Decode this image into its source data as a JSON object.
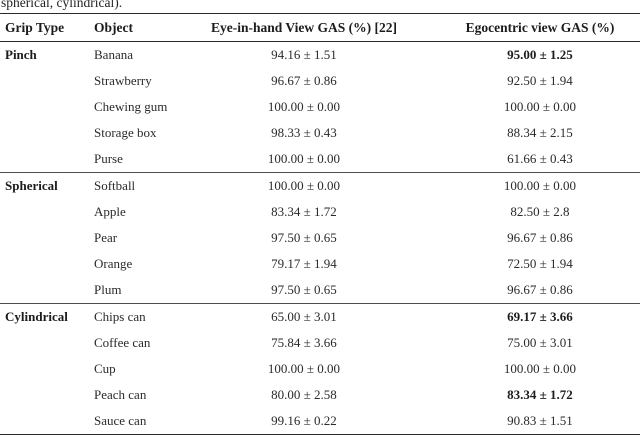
{
  "caption_fragment": "spherical, cylindrical).",
  "table": {
    "headers": [
      "Grip Type",
      "Object",
      "Eye-in-hand View GAS (%) [22]",
      "Egocentric view GAS (%)"
    ],
    "plus_minus_symbol": "±",
    "groups": [
      {
        "grip_type": "Pinch",
        "rows": [
          {
            "object": "Banana",
            "eye_in_hand": "94.16 ± 1.51",
            "egocentric": "95.00 ± 1.25",
            "egocentric_bold": true
          },
          {
            "object": "Strawberry",
            "eye_in_hand": "96.67 ± 0.86",
            "egocentric": "92.50 ± 1.94",
            "egocentric_bold": false
          },
          {
            "object": "Chewing gum",
            "eye_in_hand": "100.00 ± 0.00",
            "egocentric": "100.00 ± 0.00",
            "egocentric_bold": false
          },
          {
            "object": "Storage box",
            "eye_in_hand": "98.33 ± 0.43",
            "egocentric": "88.34 ± 2.15",
            "egocentric_bold": false
          },
          {
            "object": "Purse",
            "eye_in_hand": "100.00 ± 0.00",
            "egocentric": "61.66 ± 0.43",
            "egocentric_bold": false
          }
        ]
      },
      {
        "grip_type": "Spherical",
        "rows": [
          {
            "object": "Softball",
            "eye_in_hand": "100.00 ± 0.00",
            "egocentric": "100.00 ± 0.00",
            "egocentric_bold": false
          },
          {
            "object": "Apple",
            "eye_in_hand": "83.34 ± 1.72",
            "egocentric": "82.50 ± 2.8",
            "egocentric_bold": false
          },
          {
            "object": "Pear",
            "eye_in_hand": "97.50 ± 0.65",
            "egocentric": "96.67 ± 0.86",
            "egocentric_bold": false
          },
          {
            "object": "Orange",
            "eye_in_hand": "79.17 ± 1.94",
            "egocentric": "72.50 ± 1.94",
            "egocentric_bold": false
          },
          {
            "object": "Plum",
            "eye_in_hand": "97.50 ± 0.65",
            "egocentric": "96.67 ± 0.86",
            "egocentric_bold": false
          }
        ]
      },
      {
        "grip_type": "Cylindrical",
        "rows": [
          {
            "object": "Chips can",
            "eye_in_hand": "65.00 ± 3.01",
            "egocentric": "69.17 ± 3.66",
            "egocentric_bold": true
          },
          {
            "object": "Coffee can",
            "eye_in_hand": "75.84 ± 3.66",
            "egocentric": "75.00 ± 3.01",
            "egocentric_bold": false
          },
          {
            "object": "Cup",
            "eye_in_hand": "100.00 ± 0.00",
            "egocentric": "100.00 ± 0.00",
            "egocentric_bold": false
          },
          {
            "object": "Peach can",
            "eye_in_hand": "80.00 ± 2.58",
            "egocentric": "83.34 ± 1.72",
            "egocentric_bold": true
          },
          {
            "object": "Sauce can",
            "eye_in_hand": "99.16 ± 0.22",
            "egocentric": "90.83 ± 1.51",
            "egocentric_bold": false
          }
        ]
      }
    ]
  }
}
